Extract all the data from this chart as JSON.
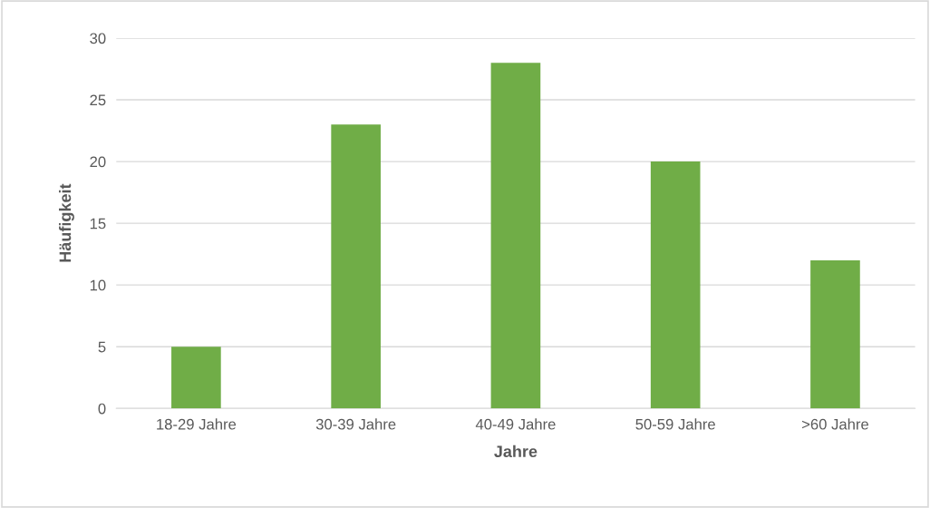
{
  "chart_data": {
    "type": "bar",
    "xlabel": "Jahre",
    "ylabel": "Häufigkeit",
    "categories": [
      "18-29 Jahre",
      "30-39 Jahre",
      "40-49 Jahre",
      "50-59 Jahre",
      ">60 Jahre"
    ],
    "values": [
      5,
      23,
      28,
      20,
      12
    ],
    "color": "#70ad47",
    "ylim": [
      0,
      30
    ],
    "yticks": [
      0,
      5,
      10,
      15,
      20,
      25,
      30
    ],
    "grid": "y"
  }
}
